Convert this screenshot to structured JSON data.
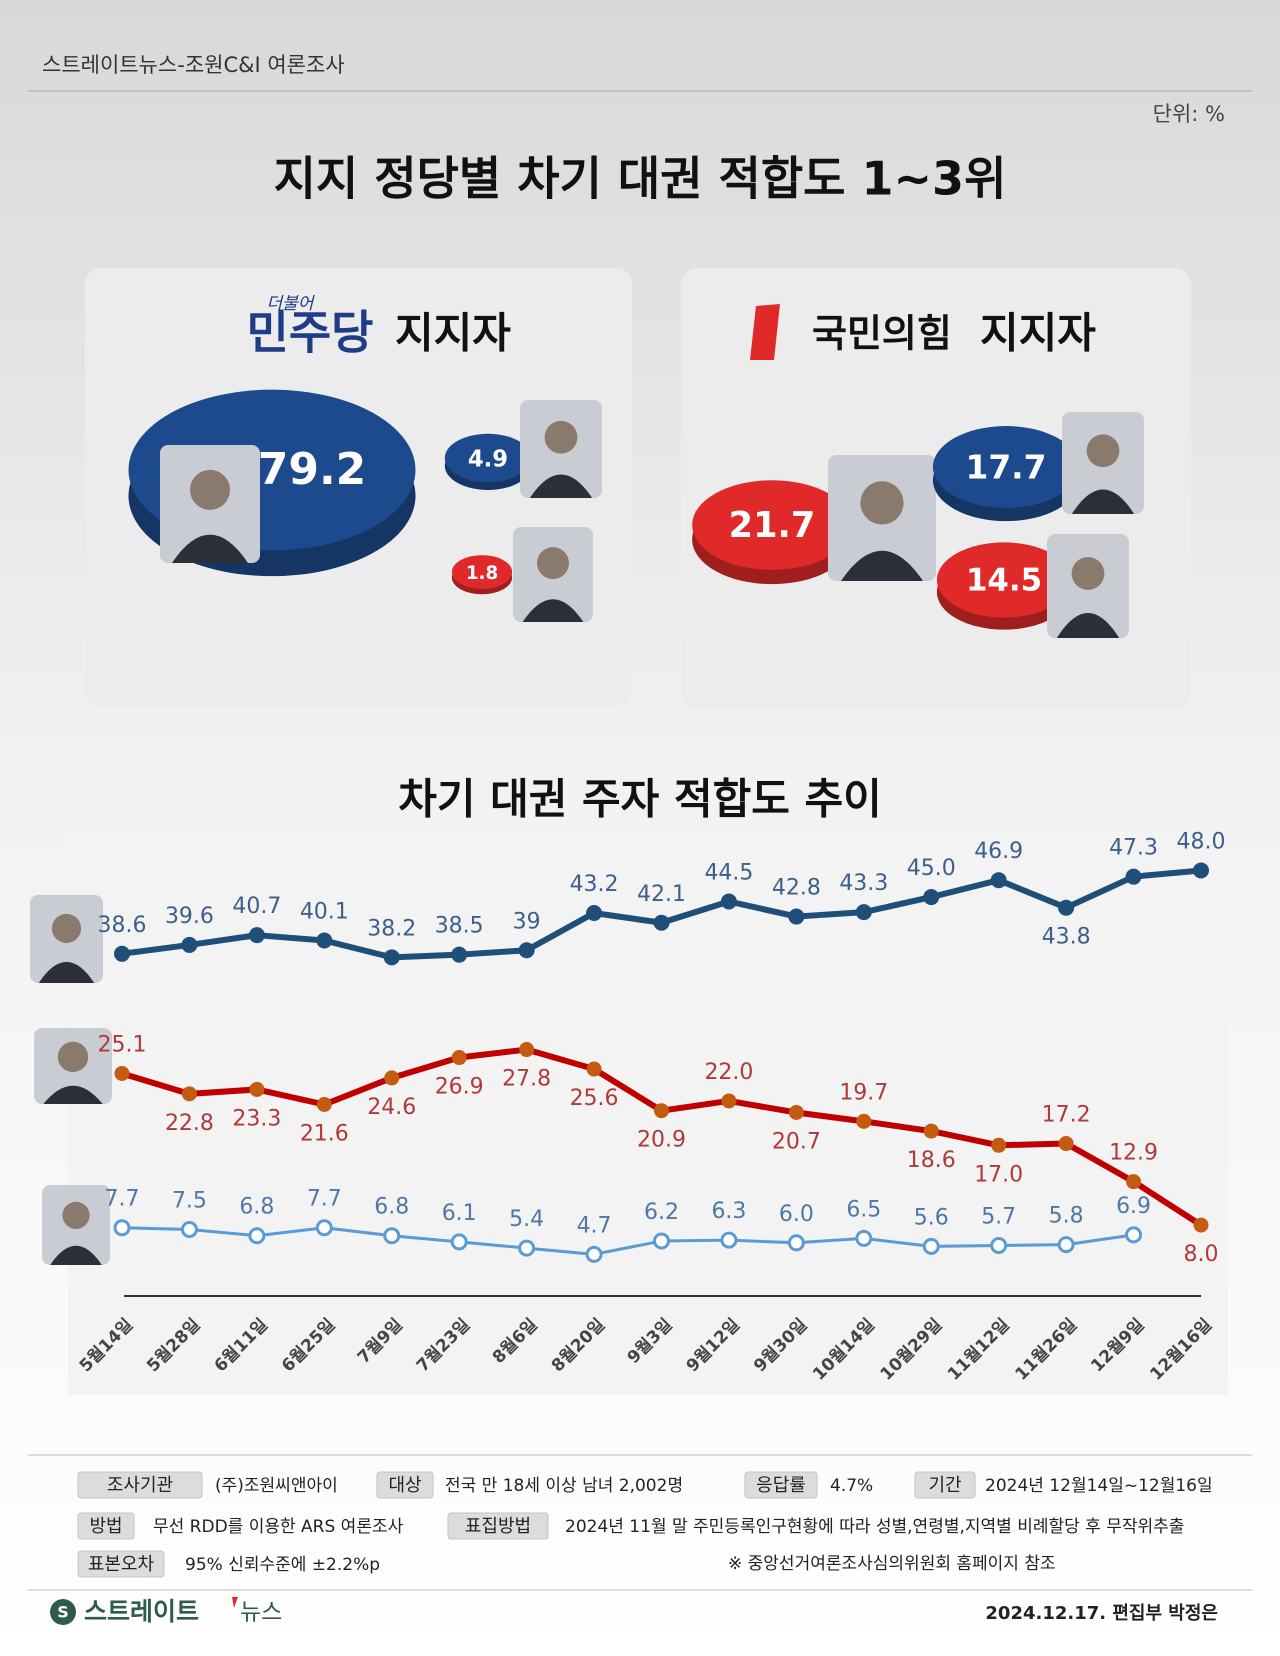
{
  "header": {
    "source": "스트레이트뉴스-조원C&I 여론조사",
    "unit": "단위: %"
  },
  "title": "지지 정당별 차기 대권  적합도 1~3위",
  "panels": [
    {
      "party_small": "더불어",
      "party": "민주당",
      "suffix": "지지자",
      "items": [
        {
          "value": 79.2,
          "color": "#1d4a8c"
        },
        {
          "value": 4.9,
          "color": "#1d4a8c"
        },
        {
          "value": 1.8,
          "color": "#e02a2a"
        }
      ]
    },
    {
      "party": "국민의힘",
      "suffix": "지지자",
      "items": [
        {
          "value": 21.7,
          "color": "#e02a2a"
        },
        {
          "value": 17.7,
          "color": "#1d4a8c"
        },
        {
          "value": 14.5,
          "color": "#e02a2a"
        }
      ]
    }
  ],
  "chart_data": {
    "type": "line",
    "title": "차기 대권 주자 적합도 추이",
    "categories": [
      "5월14일",
      "5월28일",
      "6월11일",
      "6월25일",
      "7월9일",
      "7월23일",
      "8월6일",
      "8월20일",
      "9월3일",
      "9월12일",
      "9월30일",
      "10월14일",
      "10월29일",
      "11월12일",
      "11월26일",
      "12월9일",
      "12월16일"
    ],
    "ylim": [
      0,
      52
    ],
    "series": [
      {
        "color": "#1f4e79",
        "values": [
          38.6,
          39.6,
          40.7,
          40.1,
          38.2,
          38.5,
          39,
          43.2,
          42.1,
          44.5,
          42.8,
          43.3,
          45.0,
          46.9,
          43.8,
          47.3,
          48.0
        ],
        "value_labels": [
          "38.6",
          "39.6",
          "40.7",
          "40.1",
          "38.2",
          "38.5",
          "39",
          "43.2",
          "42.1",
          "44.5",
          "42.8",
          "43.3",
          "45.0",
          "46.9",
          "43.8",
          "47.3",
          "48.0"
        ]
      },
      {
        "color": "#c00000",
        "values": [
          25.1,
          22.8,
          23.3,
          21.6,
          24.6,
          26.9,
          27.8,
          25.6,
          20.9,
          22.0,
          20.7,
          19.7,
          18.6,
          17.0,
          17.2,
          12.9,
          8.0
        ],
        "value_labels": [
          "25.1",
          "22.8",
          "23.3",
          "21.6",
          "24.6",
          "26.9",
          "27.8",
          "25.6",
          "20.9",
          "22.0",
          "20.7",
          "19.7",
          "18.6",
          "17.0",
          "17.2",
          "12.9",
          "8.0"
        ]
      },
      {
        "color": "#5b9bd5",
        "values": [
          7.7,
          7.5,
          6.8,
          7.7,
          6.8,
          6.1,
          5.4,
          4.7,
          6.2,
          6.3,
          6.0,
          6.5,
          5.6,
          5.7,
          5.8,
          6.9,
          null
        ],
        "value_labels": [
          "7.7",
          "7.5",
          "6.8",
          "7.7",
          "6.8",
          "6.1",
          "5.4",
          "4.7",
          "6.2",
          "6.3",
          "6.0",
          "6.5",
          "5.6",
          "5.7",
          "5.8",
          "6.9",
          null
        ]
      }
    ]
  },
  "survey": [
    {
      "label": "조사기관",
      "value": "(주)조원씨앤아이"
    },
    {
      "label": "대상",
      "value": "전국 만 18세 이상 남녀 2,002명"
    },
    {
      "label": "응답률",
      "value": "4.7%"
    },
    {
      "label": "기간",
      "value": "2024년 12월14일~12월16일"
    },
    {
      "label": "방법",
      "value": "무선 RDD를 이용한 ARS 여론조사"
    },
    {
      "label": "표집방법",
      "value": "2024년 11월 말 주민등록인구현황에 따라 성별,연령별,지역별 비례할당 후 무작위추출"
    },
    {
      "label": "표본오차",
      "value": "95% 신뢰수준에 ±2.2%p"
    }
  ],
  "note": "※ 중앙선거여론조사심의위원회 홈페이지 참조",
  "footer": {
    "brand_main": "스트레이트",
    "brand_sub": "뉴스",
    "byline": "2024.12.17. 편집부 박정은"
  }
}
